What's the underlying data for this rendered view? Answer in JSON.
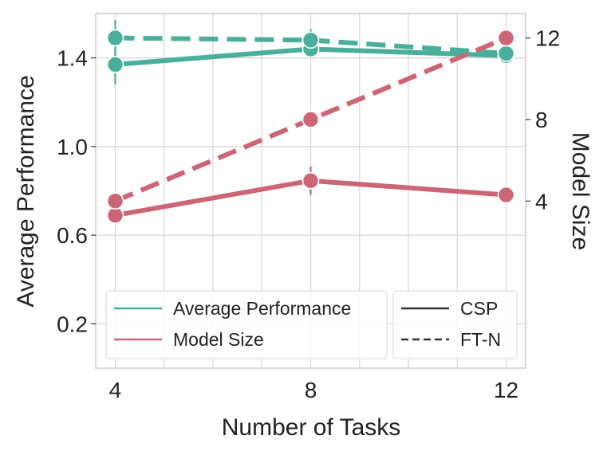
{
  "chart_data": {
    "type": "line",
    "xlabel": "Number of Tasks",
    "ylabel": "Average Performance",
    "y2label": "Model Size",
    "x": [
      4,
      8,
      12
    ],
    "xticks": [
      "4",
      "8",
      "12"
    ],
    "xlim": [
      3.6,
      12.4
    ],
    "ylim": [
      0.0,
      1.6
    ],
    "yticks": [
      "0.2",
      "0.6",
      "1.0",
      "1.4"
    ],
    "y2lim": [
      -4.2,
      13.2
    ],
    "y2ticks": [
      "4",
      "8",
      "12"
    ],
    "grid": true,
    "colors": {
      "performance": "#4aaf9a",
      "model_size": "#cc6677",
      "neutral": "#333333"
    },
    "series": [
      {
        "name": "Average Performance",
        "method": "CSP",
        "axis": "left",
        "values": [
          1.37,
          1.44,
          1.41
        ],
        "error": [
          0.09,
          0.0,
          0.0
        ]
      },
      {
        "name": "Average Performance",
        "method": "FT-N",
        "axis": "left",
        "values": [
          1.49,
          1.48,
          1.42
        ],
        "error": [
          0.08,
          0.05,
          0.0
        ]
      },
      {
        "name": "Model Size",
        "method": "CSP",
        "axis": "right",
        "values": [
          3.3,
          5.0,
          4.3
        ],
        "error": [
          0.0,
          0.7,
          0.0
        ]
      },
      {
        "name": "Model Size",
        "method": "FT-N",
        "axis": "right",
        "values": [
          4.0,
          8.0,
          12.0
        ],
        "error": [
          0.0,
          0.0,
          0.0
        ]
      }
    ],
    "legend": {
      "placement": "bottom",
      "metrics": [
        "Average Performance",
        "Model Size"
      ],
      "methods": [
        "CSP",
        "FT-N"
      ]
    }
  }
}
